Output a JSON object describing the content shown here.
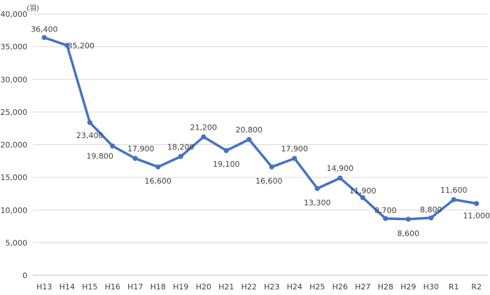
{
  "chart_data": {
    "type": "line",
    "unit": "(羽)",
    "categories": [
      "H13",
      "H14",
      "H15",
      "H16",
      "H17",
      "H18",
      "H19",
      "H20",
      "H21",
      "H22",
      "H23",
      "H24",
      "H25",
      "H26",
      "H27",
      "H28",
      "H29",
      "H30",
      "R1",
      "R2"
    ],
    "series": [
      {
        "values": [
          36400,
          35200,
          23400,
          19800,
          17900,
          16600,
          18200,
          21200,
          19100,
          20800,
          16600,
          17900,
          13300,
          14900,
          11900,
          8700,
          8600,
          8800,
          11600,
          11000
        ],
        "labels": [
          "36,400",
          "35,200",
          "23,400",
          "19,800",
          "17,900",
          "16,600",
          "18,200",
          "21,200",
          "19,100",
          "20,800",
          "16,600",
          "17,900",
          "13,300",
          "14,900",
          "11,900",
          "8,700",
          "8,600",
          "8,800",
          "11,600",
          "11,000"
        ],
        "color": "#4472c4"
      }
    ],
    "ylim": [
      0,
      40000
    ],
    "yticks": [
      0,
      5000,
      10000,
      15000,
      20000,
      25000,
      30000,
      35000,
      40000
    ],
    "ytick_labels": [
      "0",
      "5,000",
      "10,000",
      "15,000",
      "20,000",
      "25,000",
      "30,000",
      "35,000",
      "40,000"
    ],
    "grid": true,
    "legend": "none"
  }
}
